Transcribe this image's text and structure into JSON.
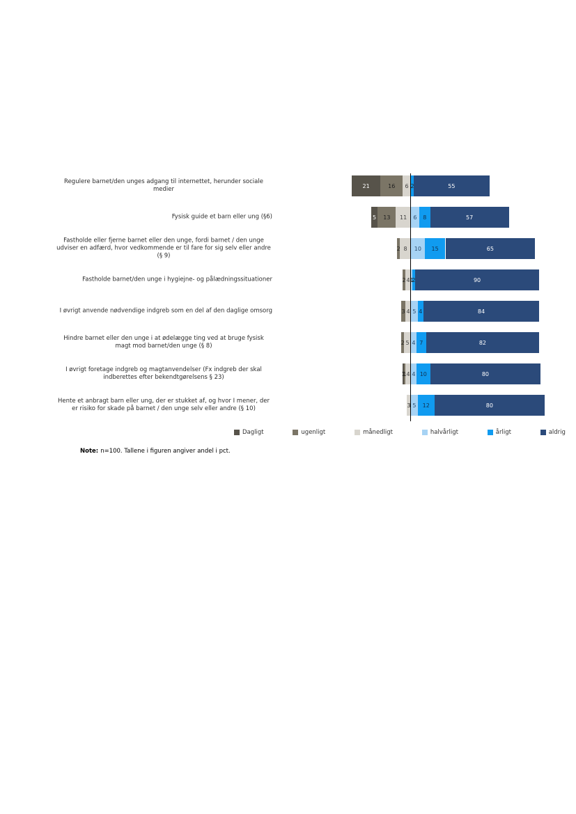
{
  "note": {
    "label": "Note:",
    "text": "n=100. Tallene i figuren angiver andel i pct."
  },
  "chart_data": {
    "type": "bar",
    "subtype": "horizontal-diverging-stacked",
    "unit": "percent",
    "grid": false,
    "legend_position": "bottom",
    "baseline_between": [
      "månedligt",
      "halvårligt"
    ],
    "categories": [
      "Regulere barnet/den unges adgang til internettet, herunder sociale medier",
      "Fysisk guide et barn eller ung (§6)",
      "Fastholde eller fjerne barnet eller den unge, fordi barnet / den unge udviser en adfærd, hvor vedkommende er til fare for sig selv eller andre (§ 9)",
      "Fastholde barnet/den unge i hygiejne- og pålædningssituationer",
      "I øvrigt anvende nødvendige indgreb som en del af den daglige omsorg",
      "Hindre barnet eller den unge i at ødelægge ting ved at bruge fysisk magt mod barnet/den unge (§ 8)",
      "I øvrigt foretage indgreb og magtanvendelser (Fx indgreb der skal indberettes efter bekendtgørelsens § 23)",
      "Hente et anbragt barn eller ung, der er stukket af, og hvor I mener, der er risiko for skade på barnet / den unge selv eller andre (§ 10)"
    ],
    "series": [
      {
        "name": "Dagligt",
        "color": "#57534a",
        "label_color": "#ffffff",
        "values": [
          21,
          5,
          0,
          0,
          0,
          0,
          1,
          0
        ]
      },
      {
        "name": "ugenligt",
        "color": "#7b7566",
        "label_color": "#1f1f1f",
        "values": [
          16,
          13,
          2,
          2,
          3,
          2,
          1,
          0
        ]
      },
      {
        "name": "månedligt",
        "color": "#d8d5ce",
        "label_color": "#3f3f3f",
        "values": [
          6,
          11,
          8,
          4,
          4,
          5,
          4,
          3
        ]
      },
      {
        "name": "halvårligt",
        "color": "#a7d3f4",
        "label_color": "#2c4d6e",
        "values": [
          0,
          6,
          10,
          1,
          5,
          4,
          4,
          5
        ]
      },
      {
        "name": "årligt",
        "color": "#109bf0",
        "label_color": "#12314f",
        "values": [
          2,
          8,
          15,
          2,
          4,
          7,
          10,
          12
        ]
      },
      {
        "name": "aldrig",
        "color": "#2b4a7a",
        "label_color": "#ffffff",
        "values": [
          55,
          57,
          65,
          90,
          84,
          82,
          80,
          80
        ]
      }
    ]
  }
}
